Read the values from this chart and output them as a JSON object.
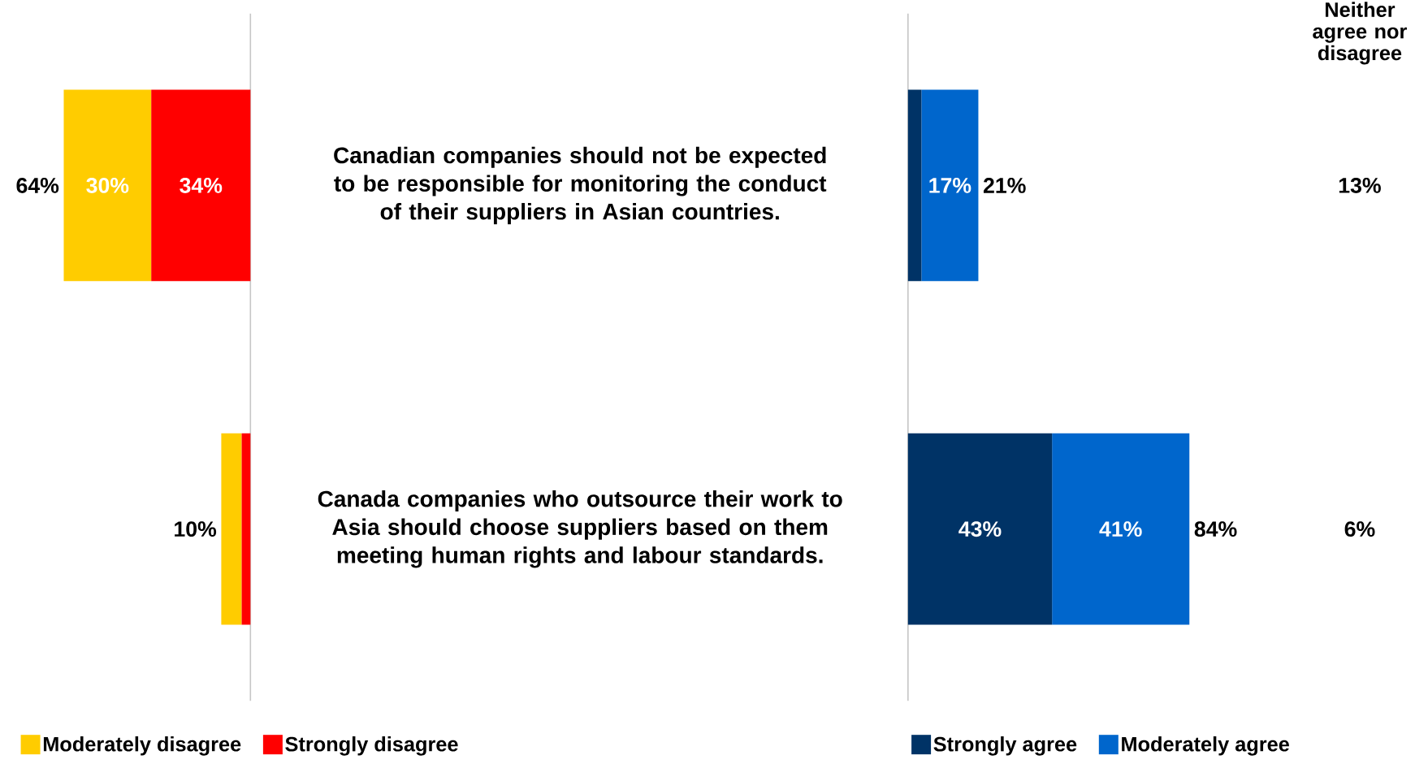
{
  "chart_data": [
    {
      "type": "bar",
      "orientation": "horizontal",
      "stacked": true,
      "categories": [
        "Canadian companies should not be expected to be responsible for monitoring the conduct of their suppliers in Asian countries.",
        "Canada companies who outsource their work to Asia should choose suppliers based on them meeting human rights and labour standards."
      ],
      "series": [
        {
          "name": "Strongly disagree",
          "color": "#ff0000",
          "values": [
            34,
            3
          ],
          "value_labels": [
            "34%",
            null
          ]
        },
        {
          "name": "Moderately disagree",
          "color": "#ffcc00",
          "values": [
            30,
            7
          ],
          "value_labels": [
            "30%",
            null
          ]
        }
      ],
      "totals": [
        "64%",
        "10%"
      ],
      "legend": "bottom",
      "tick_labels": "y"
    },
    {
      "type": "bar",
      "orientation": "horizontal",
      "stacked": true,
      "categories": [
        null,
        null
      ],
      "series": [
        {
          "name": "Strongly agree",
          "color": "#003366",
          "values": [
            4,
            43
          ],
          "value_labels": [
            null,
            "43%"
          ]
        },
        {
          "name": "Moderately agree",
          "color": "#0066cc",
          "values": [
            17,
            41
          ],
          "value_labels": [
            "17%",
            "41%"
          ]
        }
      ],
      "totals": [
        "21%",
        "84%"
      ],
      "legend": "bottom",
      "tick_labels": false
    },
    {
      "type": "other",
      "title": "Neither agree nor disagree",
      "annotations": [
        "13%",
        "6%"
      ]
    }
  ]
}
